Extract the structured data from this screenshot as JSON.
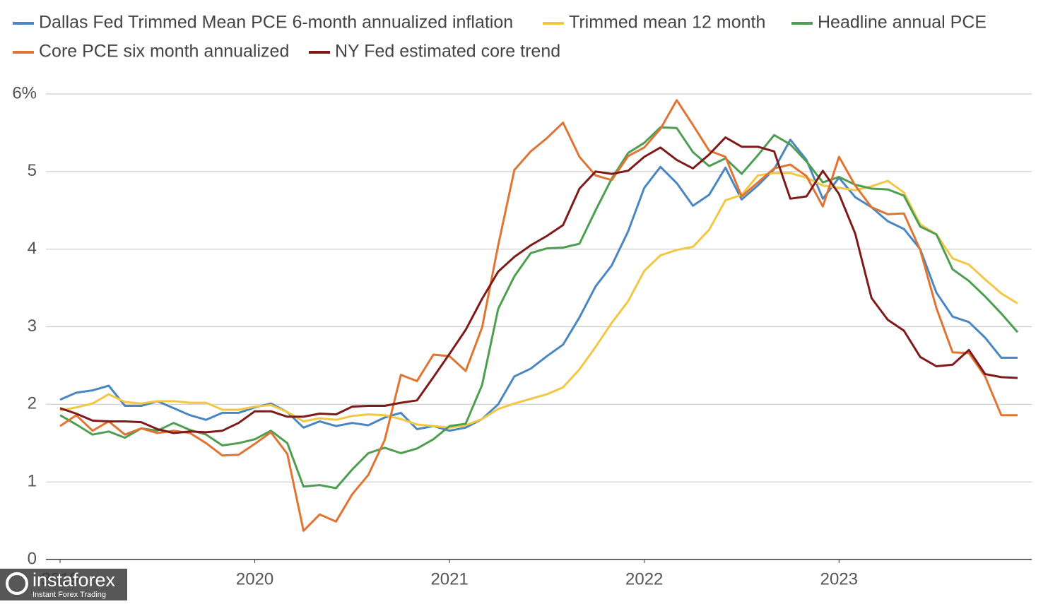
{
  "chart_data": {
    "type": "line",
    "x": [
      2019,
      2019.083,
      2019.167,
      2019.25,
      2019.333,
      2019.417,
      2019.5,
      2019.583,
      2019.667,
      2019.75,
      2019.833,
      2019.917,
      2020,
      2020.083,
      2020.167,
      2020.25,
      2020.333,
      2020.417,
      2020.5,
      2020.583,
      2020.667,
      2020.75,
      2020.833,
      2020.917,
      2021,
      2021.083,
      2021.167,
      2021.25,
      2021.333,
      2021.417,
      2021.5,
      2021.583,
      2021.667,
      2021.75,
      2021.833,
      2021.917,
      2022,
      2022.083,
      2022.167,
      2022.25,
      2022.333,
      2022.417,
      2022.5,
      2022.583,
      2022.667,
      2022.75,
      2022.833,
      2022.917,
      2023,
      2023.083,
      2023.167,
      2023.25,
      2023.333,
      2023.417,
      2023.5,
      2023.583,
      2023.667,
      2023.75,
      2023.833,
      2023.917
    ],
    "xlim": [
      2019,
      2023.917
    ],
    "xticks": [
      2019,
      2020,
      2021,
      2022,
      2023
    ],
    "ylim": [
      0,
      6
    ],
    "yticks": [
      0,
      1,
      2,
      3,
      4,
      5,
      {
        "value": 6,
        "label": "6%"
      }
    ],
    "grid": true,
    "series": [
      {
        "name": "Dallas Fed Trimmed Mean PCE 6-month annualized inflation",
        "color": "#4a86c0",
        "values": [
          2.06,
          2.15,
          2.18,
          2.24,
          1.98,
          1.98,
          2.04,
          1.95,
          1.86,
          1.8,
          1.89,
          1.89,
          1.96,
          2.01,
          1.9,
          1.7,
          1.78,
          1.72,
          1.76,
          1.73,
          1.83,
          1.89,
          1.68,
          1.72,
          1.66,
          1.7,
          1.81,
          2.0,
          2.36,
          2.46,
          2.62,
          2.77,
          3.12,
          3.52,
          3.79,
          4.23,
          4.79,
          5.06,
          4.85,
          4.56,
          4.7,
          5.05,
          4.64,
          4.82,
          5.03,
          5.41,
          5.15,
          4.65,
          4.92,
          4.67,
          4.54,
          4.36,
          4.26,
          4.0,
          3.44,
          3.13,
          3.06,
          2.86,
          2.6,
          2.6
        ]
      },
      {
        "name": "Trimmed mean 12 month",
        "color": "#f2c744",
        "values": [
          1.92,
          1.96,
          2.01,
          2.13,
          2.03,
          2.01,
          2.04,
          2.04,
          2.02,
          2.02,
          1.93,
          1.93,
          1.97,
          1.99,
          1.9,
          1.78,
          1.82,
          1.8,
          1.85,
          1.87,
          1.86,
          1.81,
          1.74,
          1.72,
          1.7,
          1.73,
          1.81,
          1.94,
          2.01,
          2.07,
          2.13,
          2.22,
          2.45,
          2.74,
          3.05,
          3.33,
          3.72,
          3.92,
          3.99,
          4.03,
          4.25,
          4.63,
          4.7,
          4.95,
          4.98,
          4.98,
          4.92,
          4.82,
          4.79,
          4.76,
          4.81,
          4.88,
          4.73,
          4.32,
          4.19,
          3.88,
          3.8,
          3.61,
          3.43,
          3.3
        ]
      },
      {
        "name": "Headline annual PCE",
        "color": "#4e9e52",
        "values": [
          1.86,
          1.74,
          1.61,
          1.65,
          1.57,
          1.69,
          1.66,
          1.76,
          1.67,
          1.61,
          1.47,
          1.5,
          1.55,
          1.66,
          1.5,
          0.94,
          0.96,
          0.92,
          1.16,
          1.37,
          1.44,
          1.37,
          1.43,
          1.55,
          1.72,
          1.75,
          2.25,
          3.23,
          3.65,
          3.95,
          4.01,
          4.02,
          4.07,
          4.5,
          4.91,
          5.24,
          5.37,
          5.57,
          5.56,
          5.25,
          5.07,
          5.17,
          4.97,
          5.21,
          5.47,
          5.35,
          5.13,
          4.86,
          4.93,
          4.83,
          4.78,
          4.77,
          4.69,
          4.29,
          4.19,
          3.74,
          3.59,
          3.39,
          3.17,
          2.93
        ]
      },
      {
        "name": "Core PCE six month annualized",
        "color": "#e07432",
        "values": [
          1.72,
          1.86,
          1.66,
          1.78,
          1.61,
          1.69,
          1.63,
          1.66,
          1.63,
          1.5,
          1.34,
          1.35,
          1.49,
          1.64,
          1.36,
          0.37,
          0.58,
          0.49,
          0.84,
          1.09,
          1.54,
          2.38,
          2.3,
          2.64,
          2.62,
          2.43,
          2.99,
          4.05,
          5.02,
          5.26,
          5.43,
          5.63,
          5.19,
          4.95,
          4.89,
          5.2,
          5.31,
          5.55,
          5.92,
          5.6,
          5.27,
          5.19,
          4.68,
          4.86,
          5.04,
          5.09,
          4.94,
          4.55,
          5.19,
          4.82,
          4.54,
          4.45,
          4.46,
          3.99,
          3.24,
          2.67,
          2.66,
          2.36,
          1.86,
          1.86
        ]
      },
      {
        "name": "NY Fed estimated core trend",
        "color": "#7e1a1a",
        "values": [
          1.95,
          1.88,
          1.79,
          1.78,
          1.78,
          1.77,
          1.68,
          1.63,
          1.65,
          1.64,
          1.66,
          1.76,
          1.91,
          1.91,
          1.84,
          1.84,
          1.88,
          1.87,
          1.97,
          1.98,
          1.98,
          2.02,
          2.05,
          2.35,
          2.65,
          2.96,
          3.36,
          3.71,
          3.9,
          4.05,
          4.17,
          4.31,
          4.78,
          5.0,
          4.97,
          5.01,
          5.19,
          5.31,
          5.15,
          5.04,
          5.22,
          5.44,
          5.32,
          5.32,
          5.26,
          4.65,
          4.68,
          5.01,
          4.71,
          4.2,
          3.37,
          3.09,
          2.95,
          2.61,
          2.49,
          2.51,
          2.7,
          2.39,
          2.35,
          2.34
        ]
      }
    ]
  },
  "watermark": {
    "brand": "instaforex",
    "tagline": "Instant Forex Trading"
  }
}
